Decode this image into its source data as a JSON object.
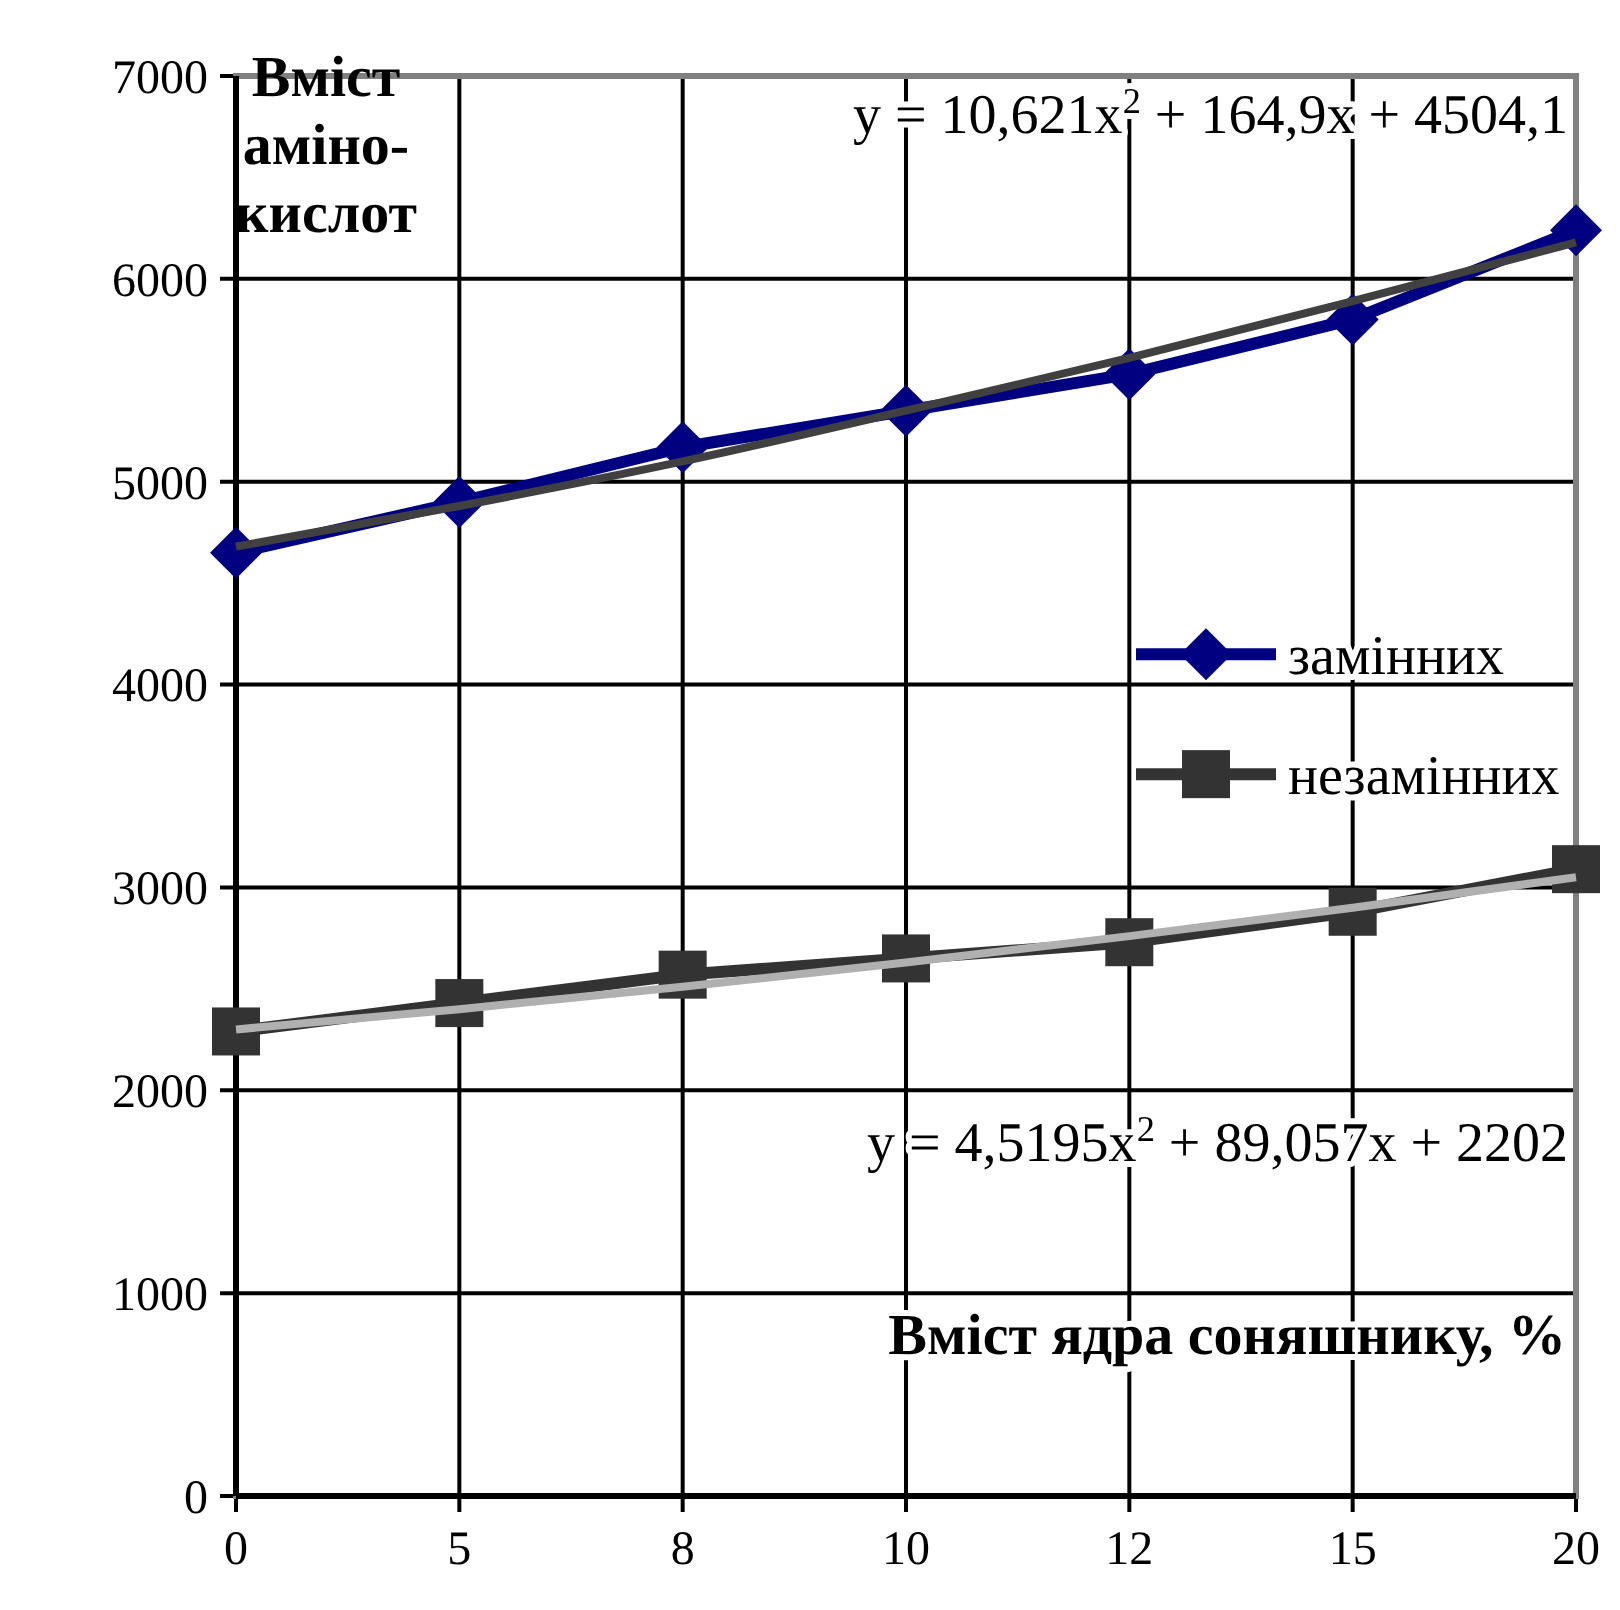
{
  "chart_data": {
    "type": "line",
    "xlabel": "Вміст ядра соняшнику, %",
    "ylabel": "Вміст аміно-кислот",
    "categories": [
      "0",
      "5",
      "8",
      "10",
      "12",
      "15",
      "20"
    ],
    "series": [
      {
        "name": "замінних",
        "color": "#000080",
        "marker": "diamond",
        "values": [
          4650,
          4900,
          5170,
          5350,
          5530,
          5800,
          6240
        ]
      },
      {
        "name": "незамінних",
        "color": "#333333",
        "marker": "square",
        "values": [
          2290,
          2430,
          2570,
          2650,
          2730,
          2880,
          3090
        ]
      },
      {
        "color": "#404040",
        "marker": "none",
        "values": [
          4680,
          4880,
          5100,
          5350,
          5610,
          5890,
          6180
        ]
      },
      {
        "color": "#b0b0b0",
        "marker": "none",
        "values": [
          2300,
          2400,
          2510,
          2630,
          2760,
          2900,
          3050
        ]
      }
    ],
    "annotations": [
      "y = 10,621x$^{2}$ + 164,9x + 4504,1",
      "y = 4,5195x$^{2}$ + 89,057x + 2202"
    ],
    "ylim": [
      0,
      7000
    ],
    "yticks": [
      0,
      1000,
      2000,
      3000,
      4000,
      5000,
      6000,
      7000
    ],
    "grid": true,
    "legend": "right",
    "line_style": "solid"
  }
}
